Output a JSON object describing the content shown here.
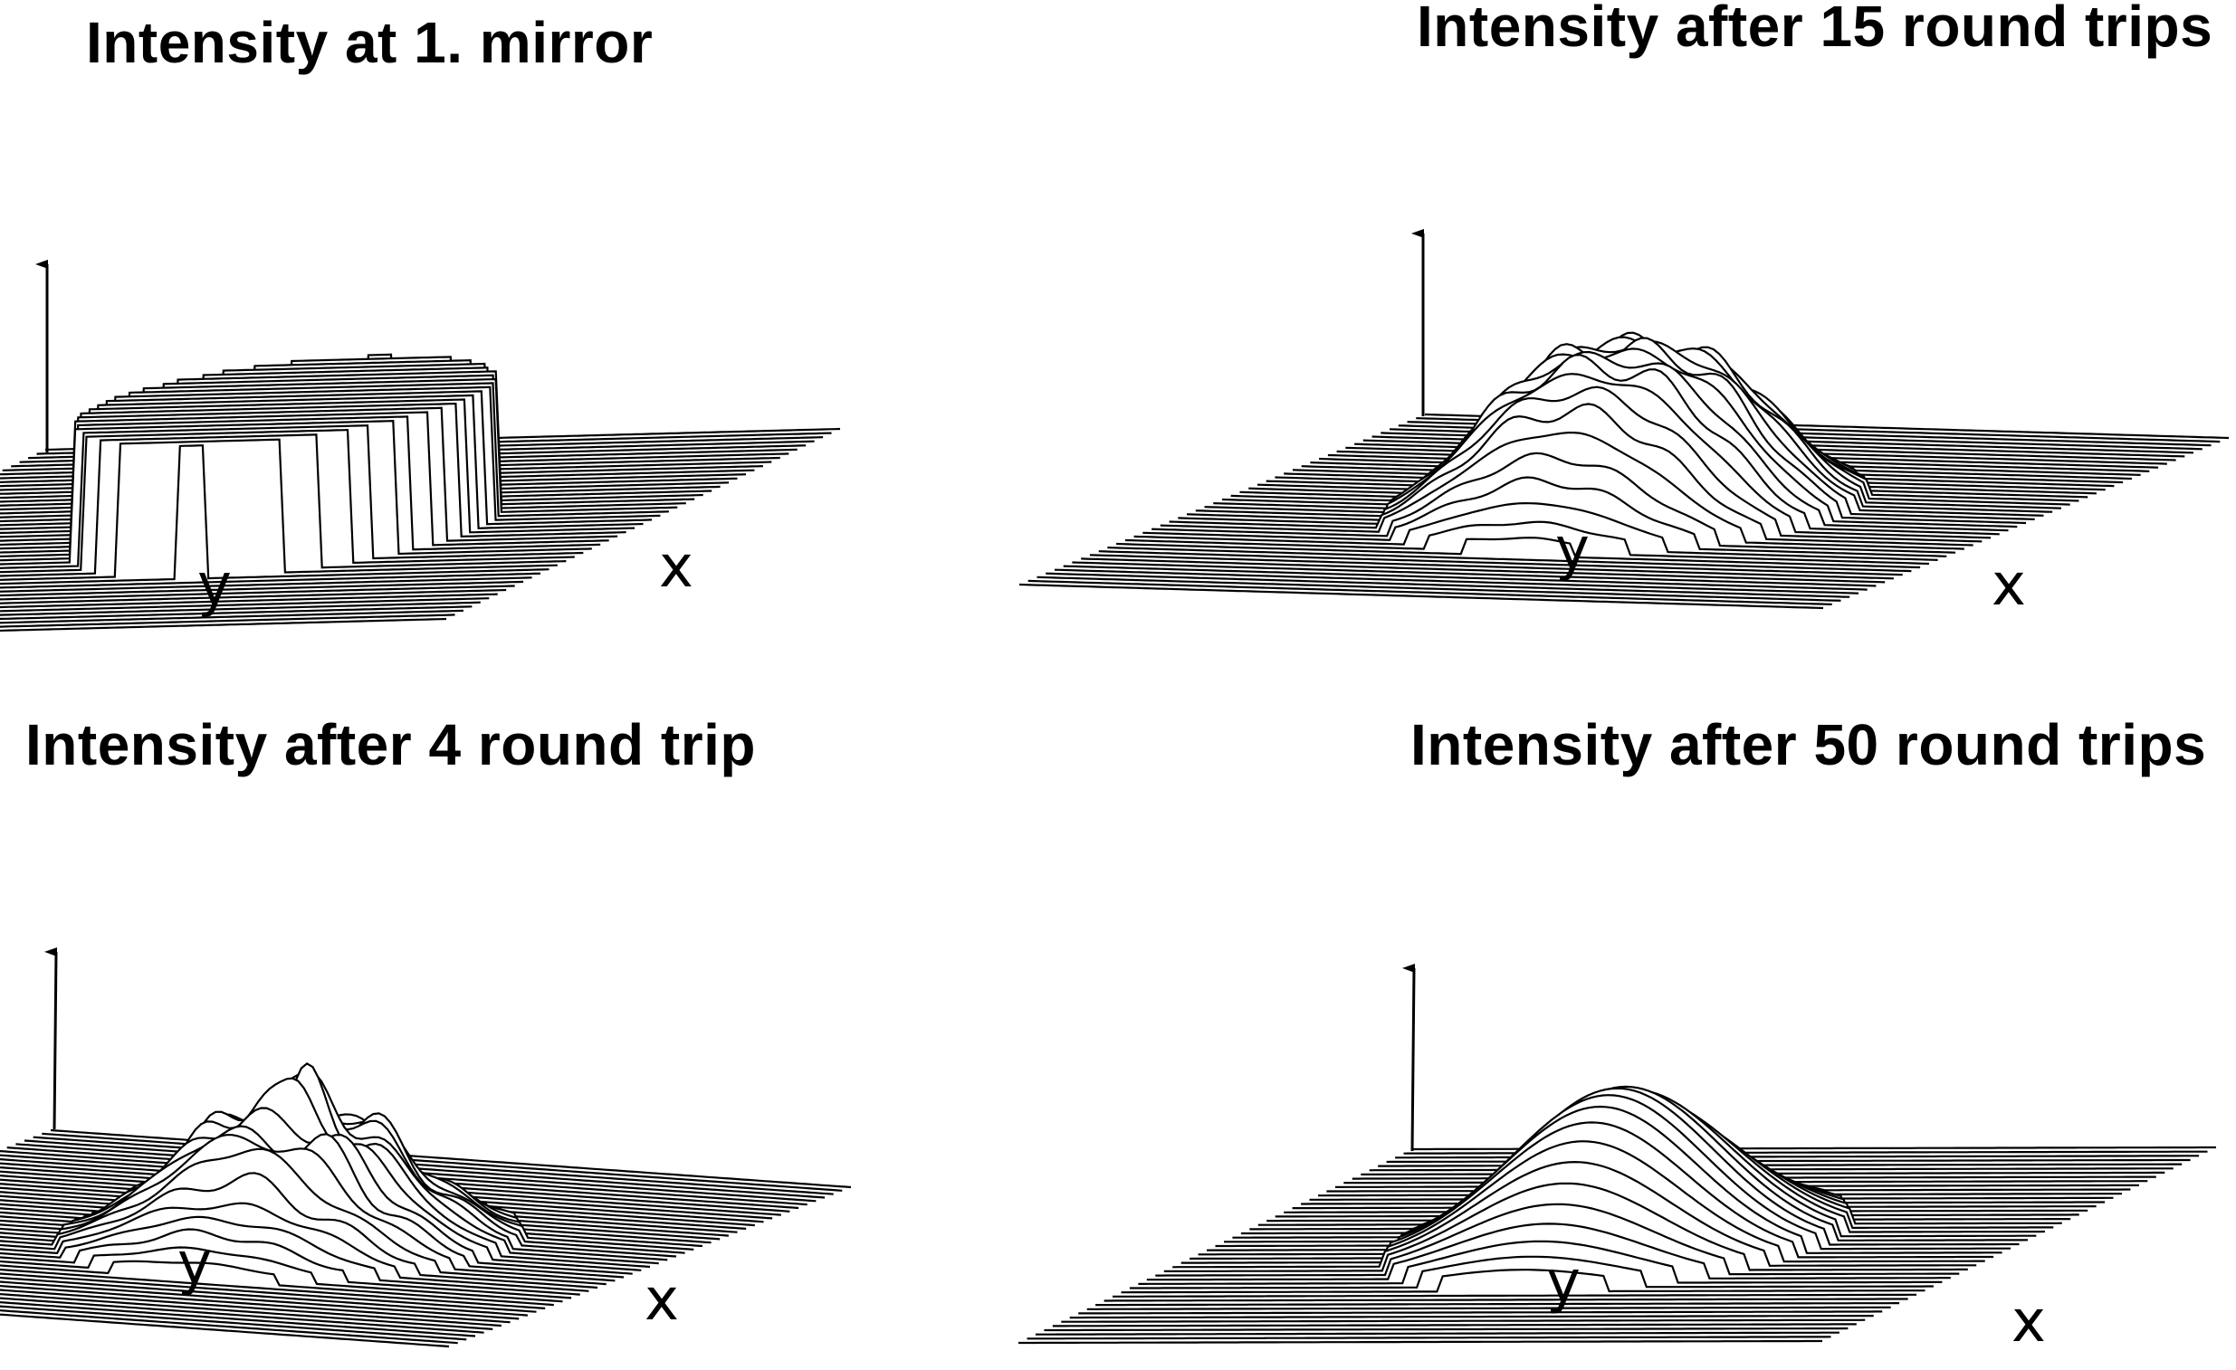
{
  "panels": [
    {
      "title": "Intensity at 1. mirror",
      "profile": "flat-top",
      "x_axis_label": "x",
      "y_axis_label": "y"
    },
    {
      "title": "Intensity after 15 round trips",
      "profile": "rounded-peak",
      "x_axis_label": "x",
      "y_axis_label": "y"
    },
    {
      "title": "Intensity after 4 round trip",
      "profile": "rippled-peak",
      "x_axis_label": "x",
      "y_axis_label": "y"
    },
    {
      "title": "Intensity after 50 round trips",
      "profile": "smooth-peak",
      "x_axis_label": "x",
      "y_axis_label": "y"
    }
  ],
  "colors": {
    "line": "#000000",
    "background": "#ffffff"
  }
}
